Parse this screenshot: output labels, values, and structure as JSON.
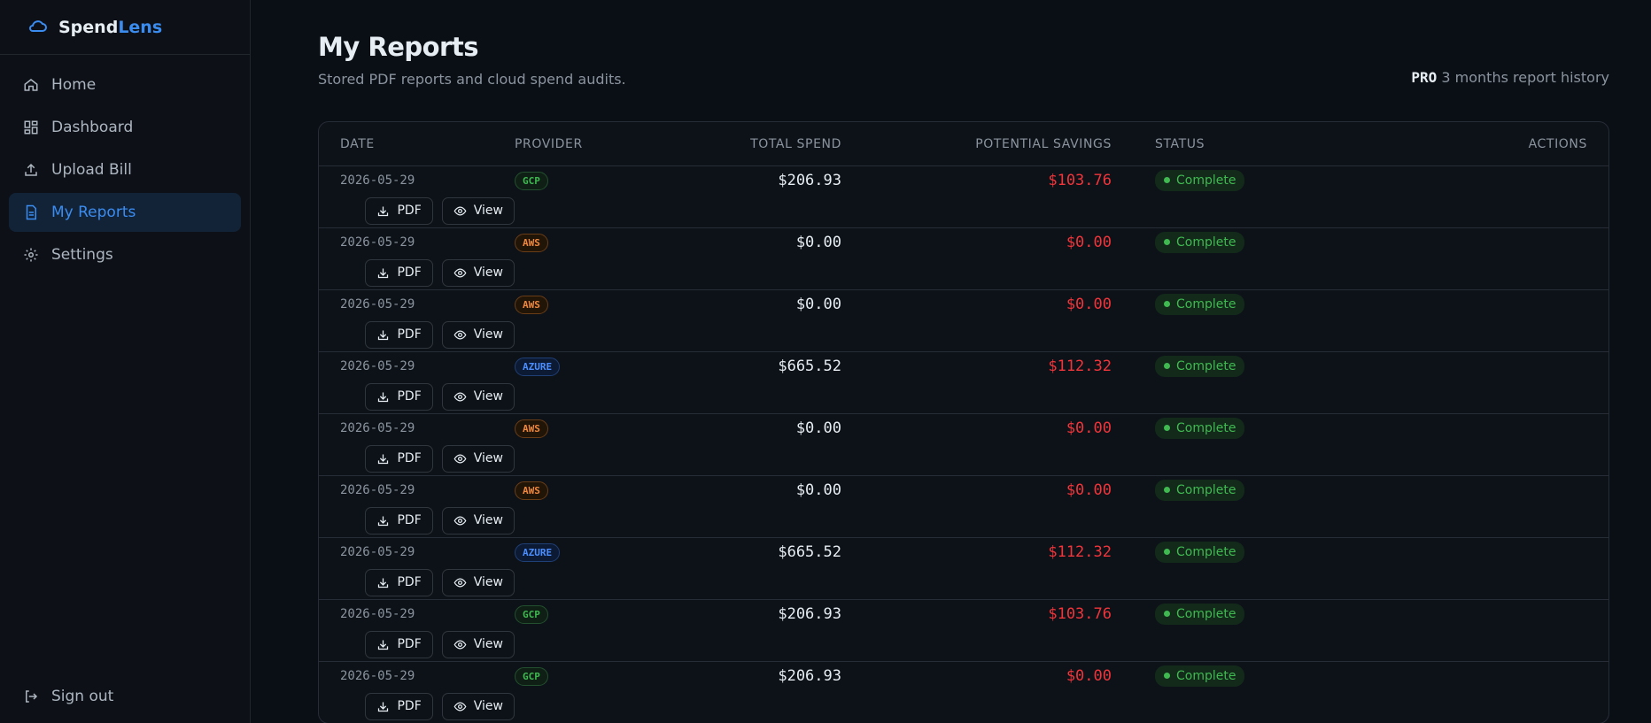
{
  "brand": {
    "first": "Spend",
    "second": "Lens"
  },
  "nav": {
    "items": [
      "Home",
      "Dashboard",
      "Upload Bill",
      "My Reports",
      "Settings"
    ],
    "active": 3,
    "signout": "Sign out"
  },
  "header": {
    "title": "My Reports",
    "subtitle": "Stored PDF reports and cloud spend audits.",
    "plan": "PRO",
    "plan_note": "3 months report history"
  },
  "table": {
    "columns": [
      "DATE",
      "PROVIDER",
      "TOTAL SPEND",
      "POTENTIAL SAVINGS",
      "STATUS",
      "ACTIONS"
    ],
    "rows": [
      [
        "2026-05-29",
        "GCP",
        "$206.93",
        "$103.76",
        "Complete",
        "PDF",
        "View"
      ],
      [
        "2026-05-29",
        "AWS",
        "$0.00",
        "$0.00",
        "Complete",
        "PDF",
        "View"
      ],
      [
        "2026-05-29",
        "AWS",
        "$0.00",
        "$0.00",
        "Complete",
        "PDF",
        "View"
      ],
      [
        "2026-05-29",
        "AZURE",
        "$665.52",
        "$112.32",
        "Complete",
        "PDF",
        "View"
      ],
      [
        "2026-05-29",
        "AWS",
        "$0.00",
        "$0.00",
        "Complete",
        "PDF",
        "View"
      ],
      [
        "2026-05-29",
        "AWS",
        "$0.00",
        "$0.00",
        "Complete",
        "PDF",
        "View"
      ],
      [
        "2026-05-29",
        "AZURE",
        "$665.52",
        "$112.32",
        "Complete",
        "PDF",
        "View"
      ],
      [
        "2026-05-29",
        "GCP",
        "$206.93",
        "$103.76",
        "Complete",
        "PDF",
        "View"
      ],
      [
        "2026-05-29",
        "GCP",
        "$206.93",
        "$0.00",
        "Complete",
        "PDF",
        "View"
      ]
    ]
  }
}
